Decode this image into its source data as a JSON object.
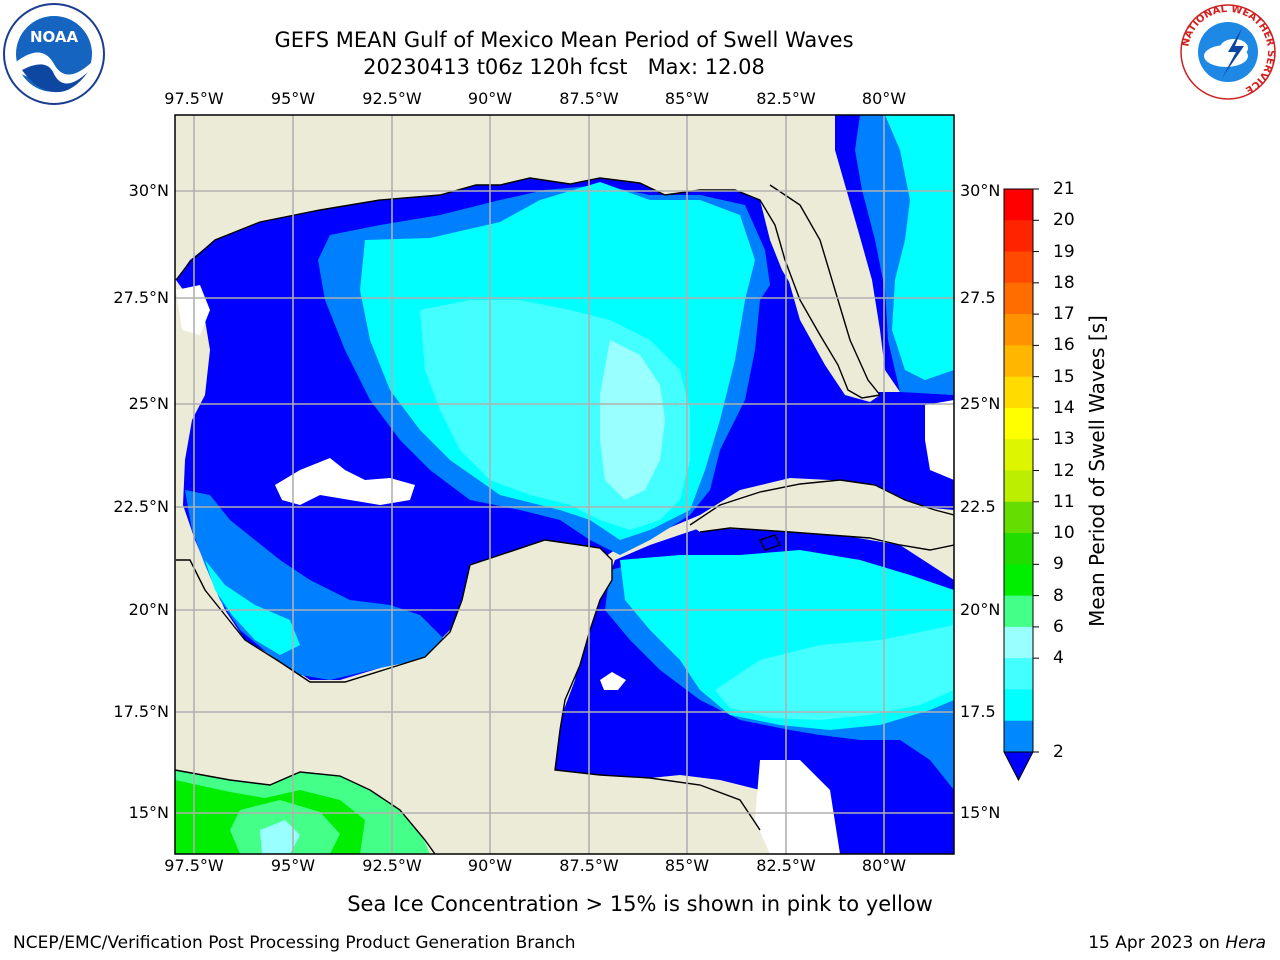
{
  "title": {
    "line1": "GEFS MEAN Gulf of Mexico Mean Period of Swell Waves",
    "line2": "20230413 t06z 120h fcst   Max: 12.08"
  },
  "map": {
    "lon_labels": [
      "97.5°W",
      "95°W",
      "92.5°W",
      "90°W",
      "87.5°W",
      "85°W",
      "82.5°W",
      "80°W"
    ],
    "lat_labels_left": [
      "30°N",
      "27.5°N",
      "25°N",
      "22.5°N",
      "20°N",
      "17.5°N",
      "15°N"
    ],
    "lat_labels_right": [
      "30°N",
      "27.5",
      "25°N",
      "22.5",
      "20°N",
      "17.5",
      "15°N"
    ],
    "colors": {
      "land": "#ecebd8",
      "grid": "#b0b0b0",
      "coast": "#000000"
    }
  },
  "colorbar": {
    "label": "Mean Period of Swell Waves [s]",
    "ticks": [
      "21",
      "20",
      "19",
      "18",
      "17",
      "16",
      "15",
      "14",
      "13",
      "12",
      "11",
      "10",
      "9",
      "8",
      "6",
      "4",
      "2"
    ],
    "bins_top_to_bottom": [
      "#ff0000",
      "#ff2400",
      "#ff4a00",
      "#ff6d00",
      "#ff9200",
      "#ffb600",
      "#ffdb00",
      "#ffff00",
      "#ddf500",
      "#bbee00",
      "#66dd00",
      "#22dd00",
      "#00ee00",
      "#44ff88",
      "#99ffff",
      "#44ffff",
      "#00ffff",
      "#0088ff"
    ],
    "extend_color": "#0000ff"
  },
  "logos": {
    "noaa": "NOAA",
    "nws_ring": "NATIONAL WEATHER SERVICE"
  },
  "subtitle": "Sea Ice Concentration > 15% is shown in pink to yellow",
  "footer": {
    "left": "NCEP/EMC/Verification Post Processing Product Generation Branch",
    "date": "15 Apr 2023 on",
    "host": "Hera"
  }
}
